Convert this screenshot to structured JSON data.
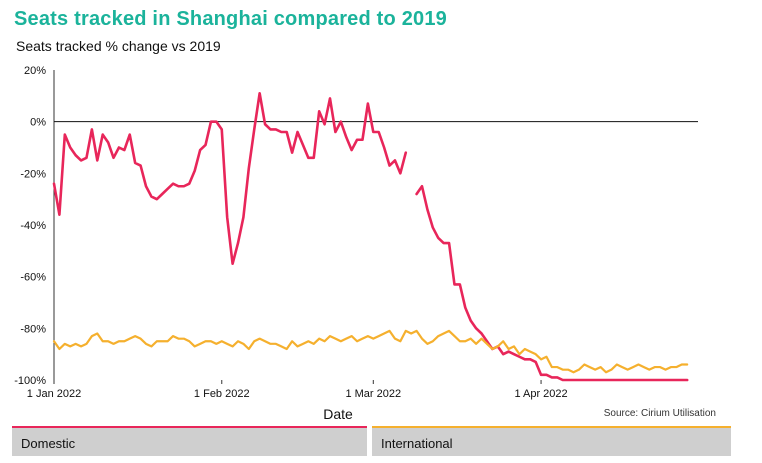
{
  "title": "Seats tracked in Shanghai compared to 2019",
  "subtitle": "Seats tracked % change vs 2019",
  "source": "Source: Cirium Utilisation",
  "colors": {
    "title": "#1bb39b",
    "domestic": "#e8265a",
    "international": "#f5b02e"
  },
  "chart_data": {
    "type": "line",
    "title": "Seats tracked in Shanghai compared to 2019",
    "subtitle": "Seats tracked % change vs 2019",
    "xlabel": "Date",
    "ylabel": "",
    "ylim": [
      -100,
      20
    ],
    "yticks": [
      20,
      0,
      -20,
      -40,
      -60,
      -80,
      -100
    ],
    "ytick_labels": [
      "20%",
      "0%",
      "-20%",
      "-40%",
      "-60%",
      "-80%",
      "-100%"
    ],
    "xlim": [
      "2022-01-01",
      "2022-04-30"
    ],
    "xticks": [
      "2022-01-01",
      "2022-02-01",
      "2022-03-01",
      "2022-04-01"
    ],
    "xtick_labels": [
      "1 Jan 2022",
      "1 Feb 2022",
      "1 Mar 2022",
      "1 Apr 2022"
    ],
    "grid": false,
    "legend": "bottom",
    "series": [
      {
        "name": "Domestic",
        "color": "#e8265a",
        "points": [
          [
            "2022-01-01",
            -24
          ],
          [
            "2022-01-02",
            -36
          ],
          [
            "2022-01-03",
            -5
          ],
          [
            "2022-01-04",
            -10
          ],
          [
            "2022-01-05",
            -13
          ],
          [
            "2022-01-06",
            -15
          ],
          [
            "2022-01-07",
            -14
          ],
          [
            "2022-01-08",
            -3
          ],
          [
            "2022-01-09",
            -15
          ],
          [
            "2022-01-10",
            -5
          ],
          [
            "2022-01-11",
            -8
          ],
          [
            "2022-01-12",
            -14
          ],
          [
            "2022-01-13",
            -10
          ],
          [
            "2022-01-14",
            -11
          ],
          [
            "2022-01-15",
            -5
          ],
          [
            "2022-01-16",
            -16
          ],
          [
            "2022-01-17",
            -17
          ],
          [
            "2022-01-18",
            -25
          ],
          [
            "2022-01-19",
            -29
          ],
          [
            "2022-01-20",
            -30
          ],
          [
            "2022-01-21",
            -28
          ],
          [
            "2022-01-22",
            -26
          ],
          [
            "2022-01-23",
            -24
          ],
          [
            "2022-01-24",
            -25
          ],
          [
            "2022-01-25",
            -25
          ],
          [
            "2022-01-26",
            -24
          ],
          [
            "2022-01-27",
            -19
          ],
          [
            "2022-01-28",
            -11
          ],
          [
            "2022-01-29",
            -9
          ],
          [
            "2022-01-30",
            0
          ],
          [
            "2022-01-31",
            0
          ],
          [
            "2022-02-01",
            -3
          ],
          [
            "2022-02-02",
            -37
          ],
          [
            "2022-02-03",
            -55
          ],
          [
            "2022-02-04",
            -47
          ],
          [
            "2022-02-05",
            -37
          ],
          [
            "2022-02-06",
            -18
          ],
          [
            "2022-02-07",
            -3
          ],
          [
            "2022-02-08",
            11
          ],
          [
            "2022-02-09",
            -1
          ],
          [
            "2022-02-10",
            -3
          ],
          [
            "2022-02-11",
            -3
          ],
          [
            "2022-02-12",
            -4
          ],
          [
            "2022-02-13",
            -4
          ],
          [
            "2022-02-14",
            -12
          ],
          [
            "2022-02-15",
            -4
          ],
          [
            "2022-02-16",
            -9
          ],
          [
            "2022-02-17",
            -14
          ],
          [
            "2022-02-18",
            -14
          ],
          [
            "2022-02-19",
            4
          ],
          [
            "2022-02-20",
            -1
          ],
          [
            "2022-02-21",
            9
          ],
          [
            "2022-02-22",
            -4
          ],
          [
            "2022-02-23",
            0
          ],
          [
            "2022-02-24",
            -6
          ],
          [
            "2022-02-25",
            -11
          ],
          [
            "2022-02-26",
            -7
          ],
          [
            "2022-02-27",
            -7
          ],
          [
            "2022-02-28",
            7
          ],
          [
            "2022-03-01",
            -4
          ],
          [
            "2022-03-02",
            -4
          ],
          [
            "2022-03-03",
            -10
          ],
          [
            "2022-03-04",
            -17
          ],
          [
            "2022-03-05",
            -15
          ],
          [
            "2022-03-06",
            -20
          ],
          [
            "2022-03-07",
            -12
          ],
          [
            "2022-03-08",
            null
          ],
          [
            "2022-03-09",
            -28
          ],
          [
            "2022-03-10",
            -25
          ],
          [
            "2022-03-11",
            -34
          ],
          [
            "2022-03-12",
            -41
          ],
          [
            "2022-03-13",
            -45
          ],
          [
            "2022-03-14",
            -47
          ],
          [
            "2022-03-15",
            -47
          ],
          [
            "2022-03-16",
            -63
          ],
          [
            "2022-03-17",
            -63
          ],
          [
            "2022-03-18",
            -72
          ],
          [
            "2022-03-19",
            -77
          ],
          [
            "2022-03-20",
            -80
          ],
          [
            "2022-03-21",
            -82
          ],
          [
            "2022-03-22",
            -85
          ],
          [
            "2022-03-23",
            -88
          ],
          [
            "2022-03-24",
            -87
          ],
          [
            "2022-03-25",
            -90
          ],
          [
            "2022-03-26",
            -89
          ],
          [
            "2022-03-27",
            -90
          ],
          [
            "2022-03-28",
            -91
          ],
          [
            "2022-03-29",
            -92
          ],
          [
            "2022-03-30",
            -92
          ],
          [
            "2022-03-31",
            -93
          ],
          [
            "2022-04-01",
            -98
          ],
          [
            "2022-04-02",
            -98
          ],
          [
            "2022-04-03",
            -99
          ],
          [
            "2022-04-04",
            -99
          ],
          [
            "2022-04-05",
            -100
          ],
          [
            "2022-04-06",
            -100
          ],
          [
            "2022-04-07",
            -100
          ],
          [
            "2022-04-08",
            -100
          ],
          [
            "2022-04-09",
            -100
          ],
          [
            "2022-04-10",
            -100
          ],
          [
            "2022-04-11",
            -100
          ],
          [
            "2022-04-12",
            -100
          ],
          [
            "2022-04-13",
            -100
          ],
          [
            "2022-04-14",
            -100
          ],
          [
            "2022-04-15",
            -100
          ],
          [
            "2022-04-16",
            -100
          ],
          [
            "2022-04-17",
            -100
          ],
          [
            "2022-04-18",
            -100
          ],
          [
            "2022-04-19",
            -100
          ],
          [
            "2022-04-20",
            -100
          ],
          [
            "2022-04-21",
            -100
          ],
          [
            "2022-04-22",
            -100
          ],
          [
            "2022-04-23",
            -100
          ],
          [
            "2022-04-24",
            -100
          ],
          [
            "2022-04-25",
            -100
          ],
          [
            "2022-04-26",
            -100
          ],
          [
            "2022-04-27",
            -100
          ],
          [
            "2022-04-28",
            -100
          ]
        ]
      },
      {
        "name": "International",
        "color": "#f5b02e",
        "points": [
          [
            "2022-01-01",
            -85
          ],
          [
            "2022-01-02",
            -88
          ],
          [
            "2022-01-03",
            -86
          ],
          [
            "2022-01-04",
            -87
          ],
          [
            "2022-01-05",
            -86
          ],
          [
            "2022-01-06",
            -87
          ],
          [
            "2022-01-07",
            -86
          ],
          [
            "2022-01-08",
            -83
          ],
          [
            "2022-01-09",
            -82
          ],
          [
            "2022-01-10",
            -85
          ],
          [
            "2022-01-11",
            -85
          ],
          [
            "2022-01-12",
            -86
          ],
          [
            "2022-01-13",
            -85
          ],
          [
            "2022-01-14",
            -85
          ],
          [
            "2022-01-15",
            -84
          ],
          [
            "2022-01-16",
            -83
          ],
          [
            "2022-01-17",
            -84
          ],
          [
            "2022-01-18",
            -86
          ],
          [
            "2022-01-19",
            -87
          ],
          [
            "2022-01-20",
            -85
          ],
          [
            "2022-01-21",
            -85
          ],
          [
            "2022-01-22",
            -85
          ],
          [
            "2022-01-23",
            -83
          ],
          [
            "2022-01-24",
            -84
          ],
          [
            "2022-01-25",
            -84
          ],
          [
            "2022-01-26",
            -85
          ],
          [
            "2022-01-27",
            -87
          ],
          [
            "2022-01-28",
            -86
          ],
          [
            "2022-01-29",
            -85
          ],
          [
            "2022-01-30",
            -85
          ],
          [
            "2022-01-31",
            -86
          ],
          [
            "2022-02-01",
            -85
          ],
          [
            "2022-02-02",
            -86
          ],
          [
            "2022-02-03",
            -87
          ],
          [
            "2022-02-04",
            -85
          ],
          [
            "2022-02-05",
            -86
          ],
          [
            "2022-02-06",
            -88
          ],
          [
            "2022-02-07",
            -85
          ],
          [
            "2022-02-08",
            -84
          ],
          [
            "2022-02-09",
            -85
          ],
          [
            "2022-02-10",
            -86
          ],
          [
            "2022-02-11",
            -86
          ],
          [
            "2022-02-12",
            -87
          ],
          [
            "2022-02-13",
            -88
          ],
          [
            "2022-02-14",
            -85
          ],
          [
            "2022-02-15",
            -87
          ],
          [
            "2022-02-16",
            -86
          ],
          [
            "2022-02-17",
            -85
          ],
          [
            "2022-02-18",
            -86
          ],
          [
            "2022-02-19",
            -84
          ],
          [
            "2022-02-20",
            -85
          ],
          [
            "2022-02-21",
            -83
          ],
          [
            "2022-02-22",
            -84
          ],
          [
            "2022-02-23",
            -85
          ],
          [
            "2022-02-24",
            -84
          ],
          [
            "2022-02-25",
            -83
          ],
          [
            "2022-02-26",
            -85
          ],
          [
            "2022-02-27",
            -84
          ],
          [
            "2022-02-28",
            -83
          ],
          [
            "2022-03-01",
            -84
          ],
          [
            "2022-03-02",
            -83
          ],
          [
            "2022-03-03",
            -82
          ],
          [
            "2022-03-04",
            -81
          ],
          [
            "2022-03-05",
            -84
          ],
          [
            "2022-03-06",
            -85
          ],
          [
            "2022-03-07",
            -81
          ],
          [
            "2022-03-08",
            -82
          ],
          [
            "2022-03-09",
            -81
          ],
          [
            "2022-03-10",
            -84
          ],
          [
            "2022-03-11",
            -86
          ],
          [
            "2022-03-12",
            -85
          ],
          [
            "2022-03-13",
            -83
          ],
          [
            "2022-03-14",
            -82
          ],
          [
            "2022-03-15",
            -81
          ],
          [
            "2022-03-16",
            -83
          ],
          [
            "2022-03-17",
            -85
          ],
          [
            "2022-03-18",
            -85
          ],
          [
            "2022-03-19",
            -84
          ],
          [
            "2022-03-20",
            -86
          ],
          [
            "2022-03-21",
            -84
          ],
          [
            "2022-03-22",
            -86
          ],
          [
            "2022-03-23",
            -88
          ],
          [
            "2022-03-24",
            -87
          ],
          [
            "2022-03-25",
            -85
          ],
          [
            "2022-03-26",
            -88
          ],
          [
            "2022-03-27",
            -87
          ],
          [
            "2022-03-28",
            -90
          ],
          [
            "2022-03-29",
            -88
          ],
          [
            "2022-03-30",
            -89
          ],
          [
            "2022-03-31",
            -90
          ],
          [
            "2022-04-01",
            -92
          ],
          [
            "2022-04-02",
            -91
          ],
          [
            "2022-04-03",
            -95
          ],
          [
            "2022-04-04",
            -95
          ],
          [
            "2022-04-05",
            -96
          ],
          [
            "2022-04-06",
            -96
          ],
          [
            "2022-04-07",
            -97
          ],
          [
            "2022-04-08",
            -96
          ],
          [
            "2022-04-09",
            -94
          ],
          [
            "2022-04-10",
            -95
          ],
          [
            "2022-04-11",
            -96
          ],
          [
            "2022-04-12",
            -95
          ],
          [
            "2022-04-13",
            -97
          ],
          [
            "2022-04-14",
            -96
          ],
          [
            "2022-04-15",
            -94
          ],
          [
            "2022-04-16",
            -95
          ],
          [
            "2022-04-17",
            -96
          ],
          [
            "2022-04-18",
            -95
          ],
          [
            "2022-04-19",
            -94
          ],
          [
            "2022-04-20",
            -95
          ],
          [
            "2022-04-21",
            -96
          ],
          [
            "2022-04-22",
            -95
          ],
          [
            "2022-04-23",
            -95
          ],
          [
            "2022-04-24",
            -96
          ],
          [
            "2022-04-25",
            -95
          ],
          [
            "2022-04-26",
            -95
          ],
          [
            "2022-04-27",
            -94
          ],
          [
            "2022-04-28",
            -94
          ]
        ]
      }
    ]
  }
}
